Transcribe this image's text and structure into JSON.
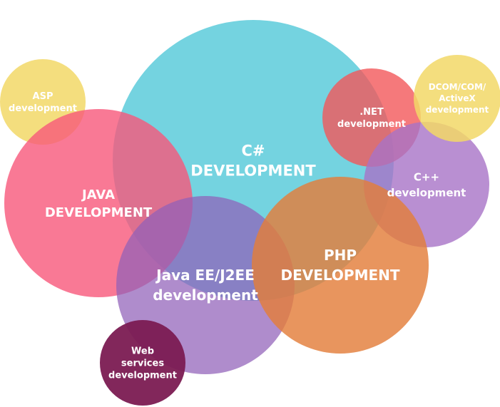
{
  "diagram": {
    "bubbles": [
      {
        "id": "csharp",
        "lines": [
          "C#",
          "DEVELOPMENT"
        ],
        "color": "#5ccbdb"
      },
      {
        "id": "asp",
        "lines": [
          "ASP",
          "development"
        ],
        "color": "#f2d867"
      },
      {
        "id": "java",
        "lines": [
          "JAVA",
          "DEVELOPMENT"
        ],
        "color": "#f8577a"
      },
      {
        "id": "javaee",
        "lines": [
          "Java EE/J2EE",
          "development"
        ],
        "color": "#9060b8"
      },
      {
        "id": "dotnet",
        "lines": [
          ".NET",
          "development"
        ],
        "color": "#f2585a"
      },
      {
        "id": "cpp",
        "lines": [
          "C++",
          "development"
        ],
        "color": "#a873c7"
      },
      {
        "id": "dcom",
        "lines": [
          "DCOM/COM/",
          "ActiveX",
          "development"
        ],
        "color": "#f2d867"
      },
      {
        "id": "php",
        "lines": [
          "PHP",
          "DEVELOPMENT"
        ],
        "color": "#e37e3b"
      },
      {
        "id": "webservices",
        "lines": [
          "Web",
          "services",
          "development"
        ],
        "color": "#7b1b52"
      }
    ]
  }
}
